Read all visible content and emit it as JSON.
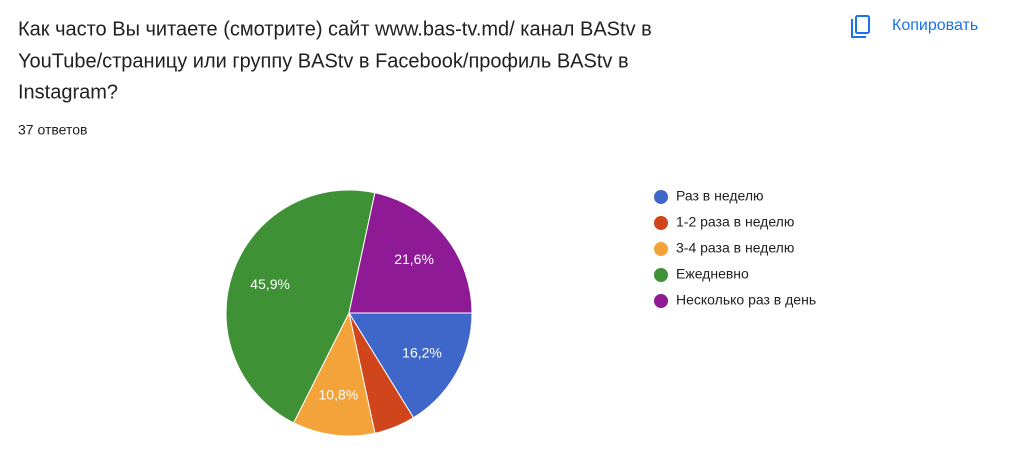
{
  "header": {
    "title_lines": [
      "Как часто Вы читаете (смотрите) сайт www.bas-tv.md/ канал BAStv в",
      "YouTube/страницу или группу BAStv в Facebook/профиль BAStv в",
      "Instagram?"
    ],
    "responses": "37 ответов",
    "copy_button": "Копировать"
  },
  "chart_data": {
    "type": "pie",
    "categories": [
      "Раз в неделю",
      "1-2 раза в неделю",
      "3-4 раза в неделю",
      "Ежедневно",
      "Несколько раз в день"
    ],
    "values": [
      16.2,
      5.4,
      10.8,
      45.9,
      21.6
    ],
    "value_labels": [
      "16,2%",
      null,
      "10,8%",
      "45,9%",
      "21,6%"
    ],
    "colors": [
      "#3f66c9",
      "#d0451b",
      "#f4a23a",
      "#3e9135",
      "#8e1b95"
    ]
  }
}
